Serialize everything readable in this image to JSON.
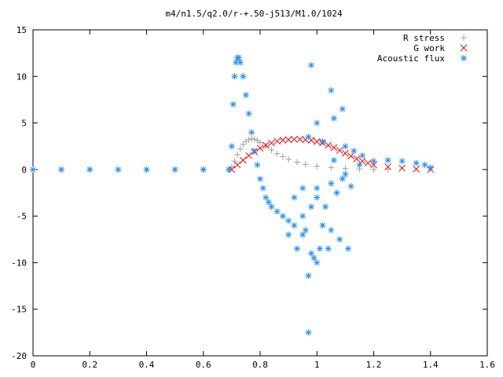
{
  "chart_data": {
    "type": "scatter",
    "title": "m4/n1.5/q2.0/r-+.50-j513/M1.0/1024",
    "xlabel": "",
    "ylabel": "",
    "xlim": [
      0,
      1.6
    ],
    "ylim": [
      -20,
      15
    ],
    "x_ticks": [
      "0",
      "0.2",
      "0.4",
      "0.6",
      "0.8",
      "1",
      "1.2",
      "1.4",
      "1.6"
    ],
    "y_ticks": [
      "15",
      "10",
      "5",
      "0",
      "-5",
      "-10",
      "-15",
      "-20"
    ],
    "grid": false,
    "legend_position": "top-right",
    "series": [
      {
        "name": "R stress",
        "marker": "+",
        "color": "#a0a0a0",
        "points": [
          [
            0.0,
            0.0
          ],
          [
            0.1,
            0.0
          ],
          [
            0.2,
            0.0
          ],
          [
            0.3,
            0.0
          ],
          [
            0.4,
            0.0
          ],
          [
            0.5,
            0.0
          ],
          [
            0.6,
            0.0
          ],
          [
            0.69,
            0.0
          ],
          [
            0.7,
            0.3
          ],
          [
            0.71,
            0.9
          ],
          [
            0.72,
            1.6
          ],
          [
            0.73,
            2.2
          ],
          [
            0.74,
            2.7
          ],
          [
            0.75,
            3.0
          ],
          [
            0.76,
            3.2
          ],
          [
            0.77,
            3.3
          ],
          [
            0.78,
            3.25
          ],
          [
            0.79,
            3.1
          ],
          [
            0.8,
            2.9
          ],
          [
            0.82,
            2.5
          ],
          [
            0.84,
            2.1
          ],
          [
            0.86,
            1.7
          ],
          [
            0.88,
            1.4
          ],
          [
            0.9,
            1.1
          ],
          [
            0.93,
            0.8
          ],
          [
            0.96,
            0.55
          ],
          [
            1.0,
            0.35
          ],
          [
            1.05,
            0.2
          ],
          [
            1.1,
            0.1
          ],
          [
            1.15,
            0.05
          ],
          [
            1.2,
            0.02
          ],
          [
            1.25,
            0.01
          ]
        ]
      },
      {
        "name": "G work",
        "marker": "x",
        "color": "#ff0000",
        "points": [
          [
            0.7,
            0.0
          ],
          [
            0.72,
            0.5
          ],
          [
            0.74,
            1.0
          ],
          [
            0.76,
            1.5
          ],
          [
            0.78,
            1.9
          ],
          [
            0.8,
            2.3
          ],
          [
            0.82,
            2.6
          ],
          [
            0.84,
            2.85
          ],
          [
            0.86,
            3.05
          ],
          [
            0.88,
            3.15
          ],
          [
            0.9,
            3.2
          ],
          [
            0.92,
            3.25
          ],
          [
            0.94,
            3.25
          ],
          [
            0.96,
            3.2
          ],
          [
            0.98,
            3.15
          ],
          [
            1.0,
            3.0
          ],
          [
            1.02,
            2.85
          ],
          [
            1.04,
            2.6
          ],
          [
            1.06,
            2.35
          ],
          [
            1.08,
            2.05
          ],
          [
            1.1,
            1.75
          ],
          [
            1.12,
            1.45
          ],
          [
            1.14,
            1.15
          ],
          [
            1.16,
            0.9
          ],
          [
            1.18,
            0.7
          ],
          [
            1.2,
            0.5
          ],
          [
            1.25,
            0.3
          ],
          [
            1.3,
            0.15
          ],
          [
            1.35,
            0.05
          ],
          [
            1.4,
            0.0
          ]
        ]
      },
      {
        "name": "Acoustic flux",
        "marker": "*",
        "color": "#1e90ff",
        "points": [
          [
            0.0,
            0.0
          ],
          [
            0.1,
            0.0
          ],
          [
            0.2,
            0.0
          ],
          [
            0.3,
            0.0
          ],
          [
            0.4,
            0.0
          ],
          [
            0.5,
            0.0
          ],
          [
            0.6,
            0.0
          ],
          [
            0.69,
            0.0
          ],
          [
            0.7,
            2.5
          ],
          [
            0.705,
            7.0
          ],
          [
            0.71,
            10.0
          ],
          [
            0.715,
            11.5
          ],
          [
            0.72,
            12.0
          ],
          [
            0.725,
            12.0
          ],
          [
            0.73,
            11.5
          ],
          [
            0.74,
            10.0
          ],
          [
            0.75,
            8.0
          ],
          [
            0.76,
            6.0
          ],
          [
            0.77,
            4.0
          ],
          [
            0.78,
            2.0
          ],
          [
            0.79,
            0.5
          ],
          [
            0.8,
            -1.0
          ],
          [
            0.81,
            -2.0
          ],
          [
            0.82,
            -3.0
          ],
          [
            0.83,
            -3.5
          ],
          [
            0.84,
            -4.0
          ],
          [
            0.86,
            -4.5
          ],
          [
            0.88,
            -5.0
          ],
          [
            0.9,
            -5.5
          ],
          [
            0.92,
            -6.0
          ],
          [
            0.95,
            -5.0
          ],
          [
            0.98,
            -4.0
          ],
          [
            1.0,
            -3.0
          ],
          [
            1.05,
            -1.5
          ],
          [
            1.1,
            -0.5
          ],
          [
            1.15,
            0.5
          ],
          [
            1.2,
            0.9
          ],
          [
            1.25,
            1.0
          ],
          [
            1.3,
            0.9
          ],
          [
            1.35,
            0.7
          ],
          [
            1.38,
            0.5
          ],
          [
            1.4,
            0.2
          ],
          [
            0.98,
            11.2
          ],
          [
            1.05,
            8.5
          ],
          [
            1.09,
            6.5
          ],
          [
            1.06,
            5.5
          ],
          [
            1.0,
            5.0
          ],
          [
            0.97,
            3.5
          ],
          [
            1.02,
            3.0
          ],
          [
            1.1,
            2.5
          ],
          [
            1.13,
            2.0
          ],
          [
            1.16,
            1.5
          ],
          [
            1.0,
            -2.0
          ],
          [
            1.03,
            -4.0
          ],
          [
            1.07,
            -2.5
          ],
          [
            1.12,
            -1.8
          ],
          [
            0.95,
            -7.0
          ],
          [
            0.98,
            -9.0
          ],
          [
            1.0,
            -10.0
          ],
          [
            0.97,
            -11.4
          ],
          [
            0.99,
            -9.5
          ],
          [
            1.01,
            -8.5
          ],
          [
            1.04,
            -8.5
          ],
          [
            0.93,
            -8.5
          ],
          [
            0.9,
            -7.0
          ],
          [
            0.96,
            -6.5
          ],
          [
            1.02,
            -6.0
          ],
          [
            1.05,
            -6.5
          ],
          [
            1.08,
            -7.5
          ],
          [
            1.11,
            -8.5
          ],
          [
            0.92,
            -3.0
          ],
          [
            0.95,
            -2.0
          ],
          [
            1.06,
            1.0
          ],
          [
            1.09,
            -1.0
          ],
          [
            0.97,
            -17.5
          ]
        ]
      }
    ]
  }
}
